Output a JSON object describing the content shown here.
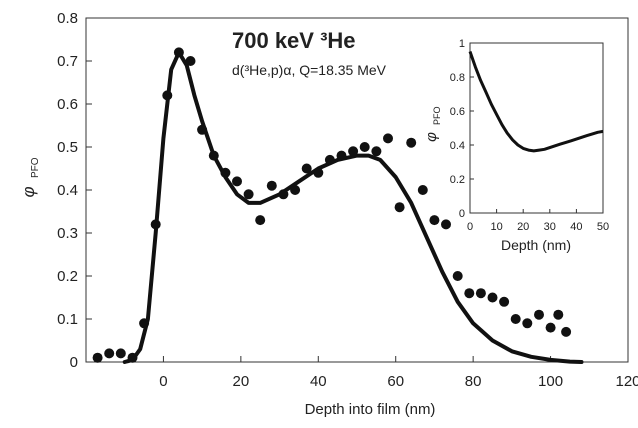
{
  "chart_data": [
    {
      "type": "scatter",
      "title": "700 keV ³He",
      "subtitle": "d(³He,p)α,  Q=18.35 MeV",
      "xlabel": "Depth into film (nm)",
      "ylabel": "φ",
      "ylabel_subscript": "PFO",
      "xlim": [
        -20,
        120
      ],
      "ylim": [
        0,
        0.8
      ],
      "x_ticks": [
        "0",
        "20",
        "40",
        "60",
        "80",
        "100",
        "120"
      ],
      "y_ticks": [
        "0",
        "0.1",
        "0.2",
        "0.3",
        "0.4",
        "0.5",
        "0.6",
        "0.7",
        "0.8"
      ],
      "grid": false,
      "series": [
        {
          "kind": "points",
          "x": [
            -17,
            -14,
            -11,
            -8,
            -5,
            -2,
            1,
            4,
            7,
            10,
            13,
            16,
            19,
            22,
            25,
            28,
            31,
            34,
            37,
            40,
            43,
            46,
            49,
            52,
            55,
            58,
            61,
            64,
            67,
            70,
            73,
            76,
            79,
            82,
            85,
            88,
            91,
            94,
            97,
            100,
            102,
            104
          ],
          "y": [
            0.01,
            0.02,
            0.02,
            0.01,
            0.09,
            0.32,
            0.62,
            0.72,
            0.7,
            0.54,
            0.48,
            0.44,
            0.42,
            0.39,
            0.33,
            0.41,
            0.39,
            0.4,
            0.45,
            0.44,
            0.47,
            0.48,
            0.49,
            0.5,
            0.49,
            0.52,
            0.36,
            0.51,
            0.4,
            0.33,
            0.32,
            0.2,
            0.16,
            0.16,
            0.15,
            0.14,
            0.1,
            0.09,
            0.11,
            0.08,
            0.11,
            0.07
          ]
        },
        {
          "kind": "line",
          "x": [
            -10,
            -8,
            -6,
            -4,
            -2,
            0,
            2,
            4,
            6,
            8,
            10,
            13,
            16,
            19,
            22,
            25,
            30,
            35,
            40,
            45,
            50,
            53,
            56,
            60,
            64,
            68,
            72,
            76,
            80,
            85,
            90,
            95,
            100,
            105,
            108
          ],
          "y": [
            0.0,
            0.005,
            0.03,
            0.1,
            0.3,
            0.52,
            0.68,
            0.72,
            0.69,
            0.62,
            0.56,
            0.48,
            0.43,
            0.39,
            0.37,
            0.37,
            0.39,
            0.42,
            0.45,
            0.47,
            0.48,
            0.48,
            0.47,
            0.43,
            0.37,
            0.29,
            0.21,
            0.14,
            0.09,
            0.05,
            0.025,
            0.012,
            0.005,
            0.001,
            0.0
          ]
        }
      ]
    },
    {
      "type": "line",
      "title": "",
      "xlabel": "Depth (nm)",
      "ylabel": "φ",
      "ylabel_subscript": "PFO",
      "xlim": [
        0,
        50
      ],
      "ylim": [
        0,
        1
      ],
      "x_ticks": [
        "0",
        "10",
        "20",
        "30",
        "40",
        "50"
      ],
      "y_ticks": [
        "0",
        "0.2",
        "0.4",
        "0.6",
        "0.8",
        "1"
      ],
      "legend": "inset top-right",
      "series": [
        {
          "kind": "line",
          "x": [
            0,
            2,
            4,
            6,
            8,
            10,
            12,
            14,
            16,
            18,
            20,
            22,
            24,
            26,
            28,
            30,
            32,
            34,
            36,
            38,
            40,
            42,
            44,
            46,
            48,
            50
          ],
          "y": [
            0.95,
            0.86,
            0.78,
            0.71,
            0.64,
            0.58,
            0.52,
            0.47,
            0.43,
            0.4,
            0.38,
            0.37,
            0.365,
            0.37,
            0.375,
            0.385,
            0.395,
            0.405,
            0.415,
            0.425,
            0.435,
            0.445,
            0.455,
            0.465,
            0.475,
            0.48
          ]
        }
      ]
    }
  ]
}
